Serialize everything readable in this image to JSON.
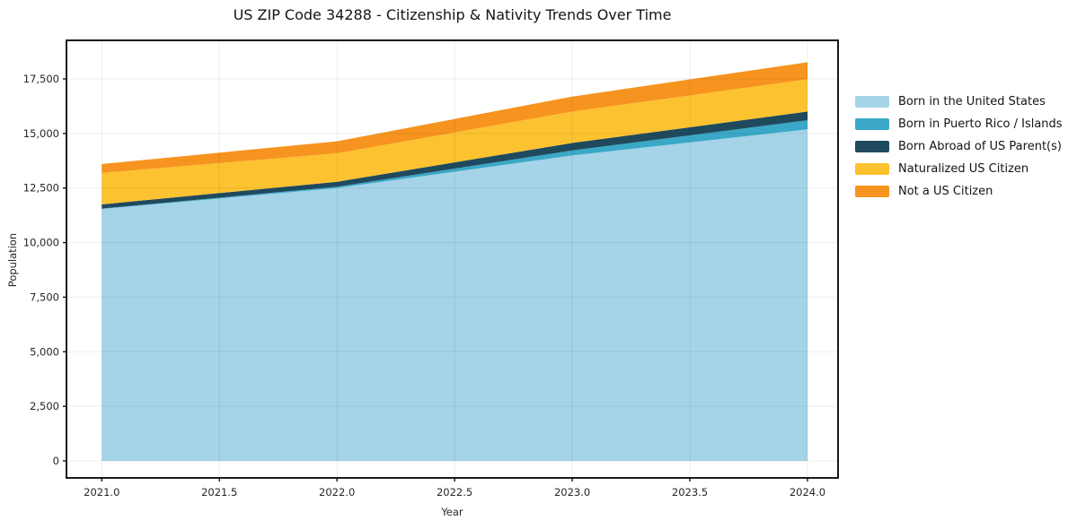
{
  "chart_data": {
    "type": "area",
    "stacked": true,
    "title": "US ZIP Code 34288 - Citizenship & Nativity Trends Over Time",
    "xlabel": "Year",
    "ylabel": "Population",
    "background": "#ffffff",
    "grid": true,
    "legend_position": "right-outside",
    "x": [
      2021,
      2022,
      2023,
      2024
    ],
    "series": [
      {
        "name": "Born in the United States",
        "color": "#A5D3E8",
        "values": [
          11540,
          12500,
          13990,
          15185
        ]
      },
      {
        "name": "Born in Puerto Rico / Islands",
        "color": "#3AA8C6",
        "values": [
          20,
          60,
          230,
          420
        ]
      },
      {
        "name": "Born Abroad of US Parent(s)",
        "color": "#1F4A5E",
        "values": [
          190,
          230,
          345,
          400
        ]
      },
      {
        "name": "Naturalized US Citizen",
        "color": "#FDC230",
        "values": [
          1440,
          1300,
          1440,
          1480
        ]
      },
      {
        "name": "Not a US Citizen",
        "color": "#F6941F",
        "values": [
          410,
          550,
          685,
          780
        ]
      }
    ],
    "stack_totals": [
      13600,
      14640,
      16690,
      18265
    ],
    "xlim": [
      2020.85,
      2024.13
    ],
    "ylim": [
      -780,
      19266
    ],
    "xticks": {
      "values": [
        2021.0,
        2021.5,
        2022.0,
        2022.5,
        2023.0,
        2023.5,
        2024.0
      ],
      "labels": [
        "2021.0",
        "2021.5",
        "2022.0",
        "2022.5",
        "2023.0",
        "2023.5",
        "2024.0"
      ]
    },
    "yticks": {
      "values": [
        0,
        2500,
        5000,
        7500,
        10000,
        12500,
        15000,
        17500
      ],
      "labels": [
        "0",
        "2,500",
        "5,000",
        "7,500",
        "10,000",
        "12,500",
        "15,000",
        "17,500"
      ]
    }
  }
}
